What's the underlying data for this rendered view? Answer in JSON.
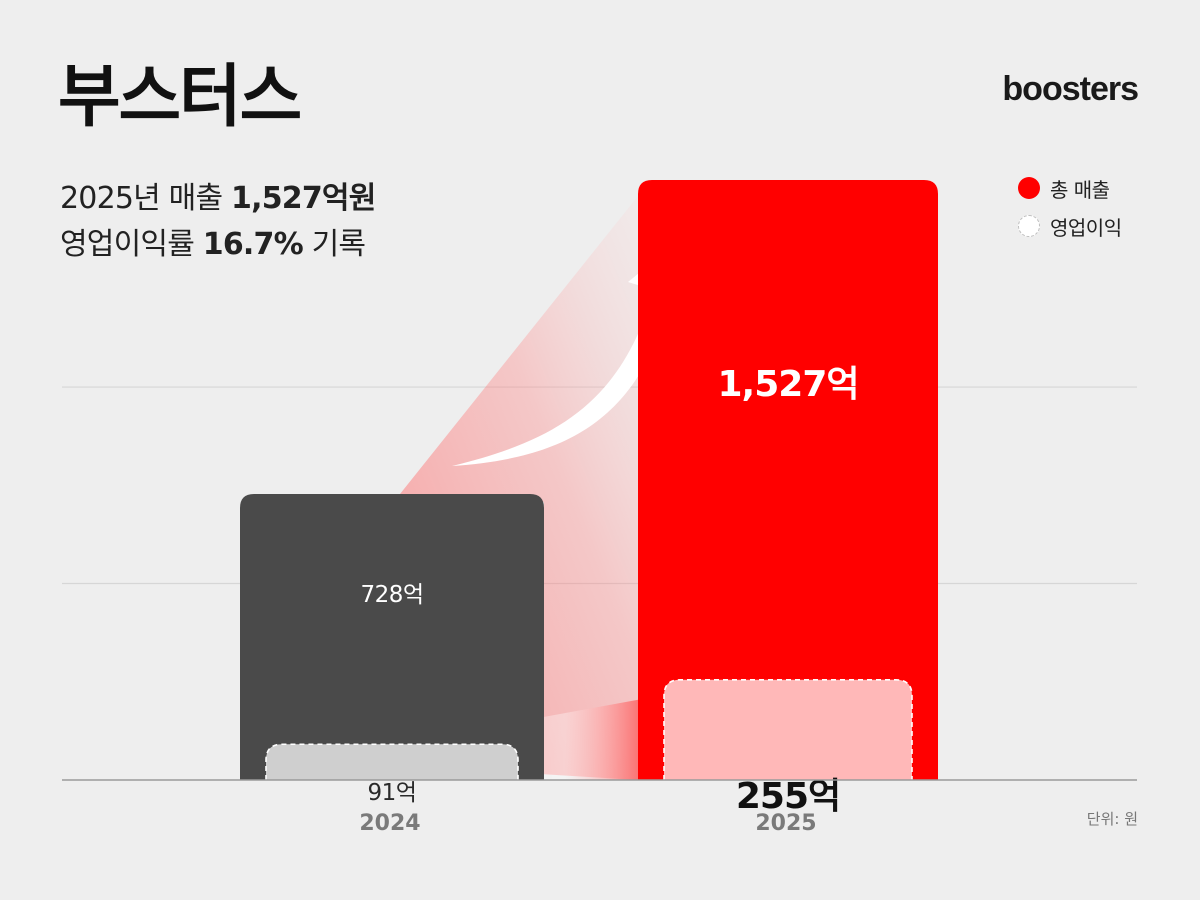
{
  "header": {
    "title": "부스터스",
    "brand": "boosters",
    "subtitle_line1_prefix": "2025년 매출 ",
    "subtitle_line1_value": "1,527억원",
    "subtitle_line2_prefix": "영업이익률 ",
    "subtitle_line2_value": "16.7%",
    "subtitle_line2_suffix": " 기록"
  },
  "legend": [
    {
      "label": "총 매출",
      "color": "#ff0000"
    },
    {
      "label": "영업이익",
      "color": "#ffffff"
    }
  ],
  "unit_label": "단위: 원",
  "colors": {
    "bar_2024": "#4a4a4a",
    "profit_2024": "#cfcfcf",
    "bar_2025": "#ff0000",
    "profit_2025": "#ffb8b8",
    "arrow": "#ffffff"
  },
  "chart_data": {
    "type": "bar",
    "categories": [
      "2024",
      "2025"
    ],
    "series": [
      {
        "name": "총 매출",
        "values": [
          728,
          1527
        ],
        "labels": [
          "728억",
          "1,527억"
        ]
      },
      {
        "name": "영업이익",
        "values": [
          91,
          255
        ],
        "labels": [
          "91억",
          "255억"
        ]
      }
    ],
    "ylim": [
      0,
      1527
    ],
    "grid": true,
    "legend_position": "top-right"
  }
}
